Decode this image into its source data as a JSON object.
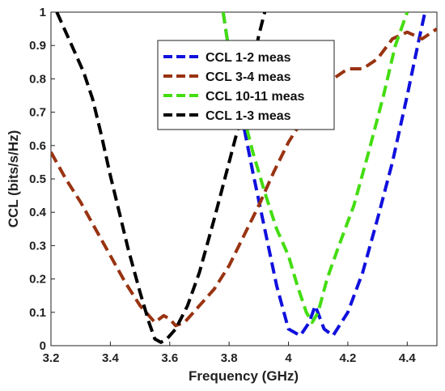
{
  "chart_data": {
    "type": "line",
    "title": "",
    "xlabel": "Frequency (GHz)",
    "ylabel": "CCL (bits/s/Hz)",
    "xlim": [
      3.2,
      4.5
    ],
    "ylim": [
      0,
      1
    ],
    "xticks": [
      "3.2",
      "3.4",
      "3.6",
      "3.8",
      "4",
      "4.2",
      "4.4"
    ],
    "yticks": [
      "0",
      "0.1",
      "0.2",
      "0.3",
      "0.4",
      "0.5",
      "0.6",
      "0.7",
      "0.8",
      "0.9",
      "1"
    ],
    "grid": false,
    "legend_position": "top-center",
    "series": [
      {
        "name": "CCL 1-2 meas",
        "color": "#1010dd",
        "x": [
          3.78,
          3.8,
          3.84,
          3.88,
          3.92,
          3.96,
          4.0,
          4.04,
          4.07,
          4.09,
          4.12,
          4.15,
          4.2,
          4.25,
          4.3,
          4.35,
          4.4,
          4.44,
          4.46
        ],
        "y": [
          1.0,
          0.88,
          0.7,
          0.52,
          0.35,
          0.18,
          0.05,
          0.03,
          0.07,
          0.12,
          0.05,
          0.03,
          0.1,
          0.22,
          0.38,
          0.55,
          0.75,
          0.92,
          1.0
        ]
      },
      {
        "name": "CCL 3-4 meas",
        "color": "#993311",
        "x": [
          3.2,
          3.25,
          3.3,
          3.35,
          3.4,
          3.45,
          3.5,
          3.55,
          3.58,
          3.6,
          3.62,
          3.65,
          3.7,
          3.75,
          3.8,
          3.85,
          3.9,
          3.95,
          4.0,
          4.05,
          4.1,
          4.15,
          4.2,
          4.25,
          4.3,
          4.35,
          4.4,
          4.45,
          4.5
        ],
        "y": [
          0.58,
          0.5,
          0.43,
          0.35,
          0.27,
          0.19,
          0.12,
          0.07,
          0.09,
          0.08,
          0.06,
          0.07,
          0.12,
          0.17,
          0.24,
          0.33,
          0.42,
          0.52,
          0.61,
          0.68,
          0.76,
          0.8,
          0.83,
          0.83,
          0.86,
          0.92,
          0.94,
          0.92,
          0.95
        ]
      },
      {
        "name": "CCL 10-11 meas",
        "color": "#44dd11",
        "x": [
          3.78,
          3.8,
          3.84,
          3.88,
          3.92,
          3.96,
          4.0,
          4.03,
          4.06,
          4.08,
          4.1,
          4.13,
          4.17,
          4.22,
          4.27,
          4.32,
          4.36,
          4.4
        ],
        "y": [
          1.0,
          0.88,
          0.72,
          0.58,
          0.46,
          0.35,
          0.27,
          0.18,
          0.1,
          0.07,
          0.1,
          0.2,
          0.3,
          0.42,
          0.58,
          0.75,
          0.9,
          1.0
        ]
      },
      {
        "name": "CCL 1-3 meas",
        "color": "#000000",
        "x": [
          3.22,
          3.25,
          3.28,
          3.31,
          3.34,
          3.37,
          3.4,
          3.43,
          3.46,
          3.5,
          3.53,
          3.55,
          3.57,
          3.59,
          3.62,
          3.66,
          3.7,
          3.75,
          3.8,
          3.85,
          3.88,
          3.9,
          3.92
        ],
        "y": [
          1.0,
          0.94,
          0.88,
          0.82,
          0.74,
          0.63,
          0.51,
          0.4,
          0.29,
          0.16,
          0.07,
          0.02,
          0.01,
          0.02,
          0.05,
          0.12,
          0.22,
          0.38,
          0.55,
          0.72,
          0.84,
          0.93,
          1.0
        ]
      }
    ]
  }
}
